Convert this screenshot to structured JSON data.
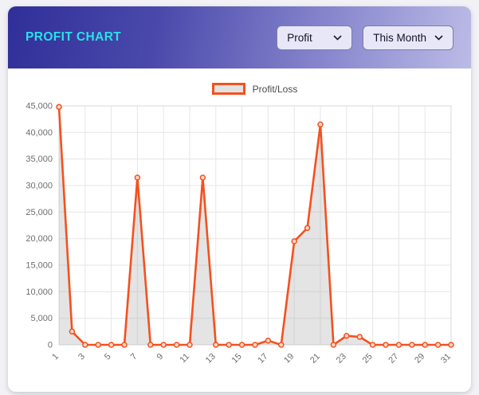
{
  "header": {
    "title": "PROFIT CHART",
    "title_color": "#2be0e8",
    "dropdowns": [
      {
        "id": "metric",
        "value": "Profit"
      },
      {
        "id": "period",
        "value": "This Month"
      }
    ]
  },
  "legend": {
    "label": "Profit/Loss"
  },
  "chart_data": {
    "type": "area",
    "title": "",
    "xlabel": "",
    "ylabel": "",
    "legend": [
      "Profit/Loss"
    ],
    "legend_position": "top-center",
    "grid": true,
    "x": [
      1,
      2,
      3,
      4,
      5,
      6,
      7,
      8,
      9,
      10,
      11,
      12,
      13,
      14,
      15,
      16,
      17,
      18,
      19,
      20,
      21,
      22,
      23,
      24,
      25,
      26,
      27,
      28,
      29,
      30,
      31
    ],
    "series": [
      {
        "name": "Profit/Loss",
        "values": [
          44800,
          2500,
          0,
          0,
          0,
          0,
          31500,
          0,
          0,
          0,
          0,
          31500,
          0,
          0,
          0,
          0,
          800,
          0,
          19500,
          22000,
          41500,
          0,
          1700,
          1500,
          0,
          0,
          0,
          0,
          0,
          0,
          0
        ]
      }
    ],
    "ylim": [
      0,
      45000
    ],
    "ytick_step": 5000,
    "xticks": [
      1,
      3,
      5,
      7,
      9,
      11,
      13,
      15,
      17,
      19,
      21,
      23,
      25,
      27,
      29,
      31
    ],
    "line_color": "#f4511e",
    "marker_fill": "#fcd9c8",
    "fill_color": "rgba(165,165,165,0.30)",
    "grid_color": "#e6e6e6"
  }
}
